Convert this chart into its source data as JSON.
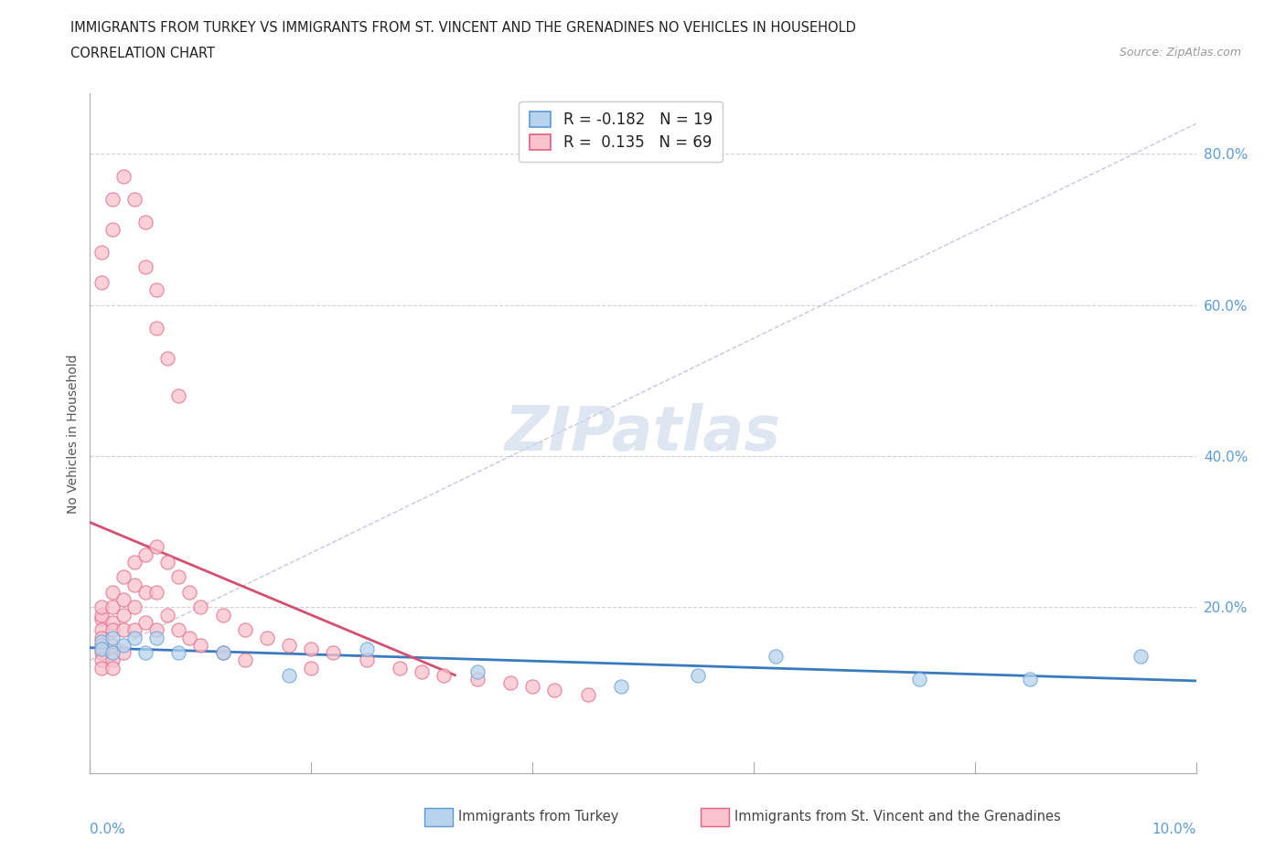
{
  "title_line1": "IMMIGRANTS FROM TURKEY VS IMMIGRANTS FROM ST. VINCENT AND THE GRENADINES NO VEHICLES IN HOUSEHOLD",
  "title_line2": "CORRELATION CHART",
  "source_text": "Source: ZipAtlas.com",
  "ylabel": "No Vehicles in Household",
  "xlim": [
    0.0,
    0.1
  ],
  "ylim": [
    -0.02,
    0.88
  ],
  "legend_R_turkey": "-0.182",
  "legend_N_turkey": "19",
  "legend_R_stv": "0.135",
  "legend_N_stv": "69",
  "color_turkey_fill": "#b8d4ed",
  "color_turkey_edge": "#5b9bd5",
  "color_stv_fill": "#f9c2cc",
  "color_stv_edge": "#e06080",
  "color_turkey_trendline": "#3a7bbf",
  "color_stv_trendline": "#d45070",
  "color_ref_dashed": "#c8b8d8",
  "color_grid": "#cccccc",
  "color_watermark": "#c8d8e8",
  "turkey_x": [
    0.001,
    0.001,
    0.002,
    0.002,
    0.003,
    0.004,
    0.005,
    0.006,
    0.008,
    0.012,
    0.018,
    0.025,
    0.035,
    0.048,
    0.055,
    0.062,
    0.075,
    0.085,
    0.095
  ],
  "turkey_y": [
    0.155,
    0.145,
    0.16,
    0.14,
    0.15,
    0.16,
    0.14,
    0.16,
    0.14,
    0.14,
    0.11,
    0.145,
    0.115,
    0.095,
    0.11,
    0.135,
    0.105,
    0.105,
    0.135
  ],
  "stv_x": [
    0.001,
    0.001,
    0.001,
    0.001,
    0.001,
    0.001,
    0.001,
    0.001,
    0.001,
    0.002,
    0.002,
    0.002,
    0.002,
    0.002,
    0.002,
    0.002,
    0.003,
    0.003,
    0.003,
    0.003,
    0.003,
    0.004,
    0.004,
    0.004,
    0.004,
    0.005,
    0.005,
    0.005,
    0.006,
    0.006,
    0.006,
    0.007,
    0.007,
    0.008,
    0.008,
    0.009,
    0.009,
    0.01,
    0.01,
    0.012,
    0.012,
    0.014,
    0.014,
    0.016,
    0.018,
    0.02,
    0.02,
    0.022,
    0.025,
    0.028,
    0.03,
    0.032,
    0.035,
    0.038,
    0.04,
    0.042,
    0.045,
    0.001,
    0.001,
    0.002,
    0.002,
    0.003,
    0.004,
    0.005,
    0.005,
    0.006,
    0.006,
    0.007,
    0.008
  ],
  "stv_y": [
    0.185,
    0.19,
    0.2,
    0.17,
    0.16,
    0.15,
    0.14,
    0.13,
    0.12,
    0.22,
    0.2,
    0.18,
    0.17,
    0.15,
    0.13,
    0.12,
    0.24,
    0.21,
    0.19,
    0.17,
    0.14,
    0.26,
    0.23,
    0.2,
    0.17,
    0.27,
    0.22,
    0.18,
    0.28,
    0.22,
    0.17,
    0.26,
    0.19,
    0.24,
    0.17,
    0.22,
    0.16,
    0.2,
    0.15,
    0.19,
    0.14,
    0.17,
    0.13,
    0.16,
    0.15,
    0.145,
    0.12,
    0.14,
    0.13,
    0.12,
    0.115,
    0.11,
    0.105,
    0.1,
    0.095,
    0.09,
    0.085,
    0.63,
    0.67,
    0.7,
    0.74,
    0.77,
    0.74,
    0.71,
    0.65,
    0.62,
    0.57,
    0.53,
    0.48
  ]
}
